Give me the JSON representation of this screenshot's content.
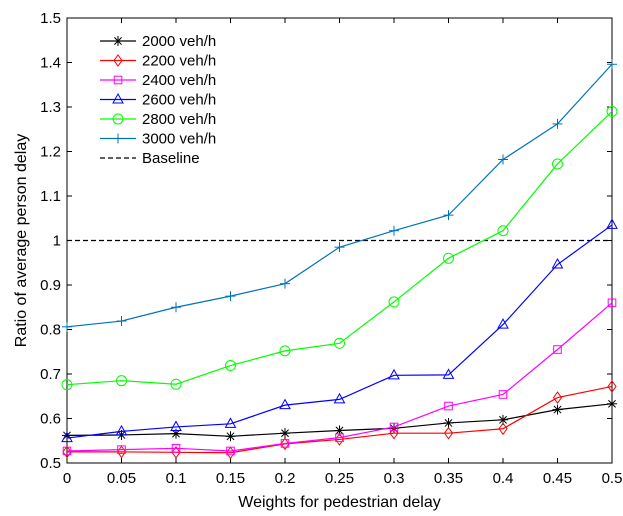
{
  "chart_data": {
    "type": "line",
    "title": "",
    "xlabel": "Weights for pedestrian delay",
    "ylabel": "Ratio of average person delay",
    "xlim": [
      0,
      0.5
    ],
    "ylim": [
      0.5,
      1.5
    ],
    "x_ticks": [
      "0",
      "0.05",
      "0.1",
      "0.15",
      "0.2",
      "0.25",
      "0.3",
      "0.35",
      "0.4",
      "0.45",
      "0.5"
    ],
    "y_ticks": [
      "0.5",
      "0.6",
      "0.7",
      "0.8",
      "0.9",
      "1",
      "1.1",
      "1.2",
      "1.3",
      "1.4",
      "1.5"
    ],
    "grid": false,
    "legend_position": "top-left",
    "x": [
      0,
      0.05,
      0.1,
      0.15,
      0.2,
      0.25,
      0.3,
      0.35,
      0.4,
      0.45,
      0.5
    ],
    "series": [
      {
        "name": "2000 veh/h",
        "color": "#000000",
        "marker": "asterisk",
        "values": [
          0.562,
          0.563,
          0.566,
          0.56,
          0.567,
          0.573,
          0.578,
          0.59,
          0.597,
          0.62,
          0.633
        ]
      },
      {
        "name": "2200 veh/h",
        "color": "#ff0000",
        "marker": "diamond",
        "values": [
          0.525,
          0.525,
          0.524,
          0.523,
          0.543,
          0.553,
          0.567,
          0.567,
          0.577,
          0.647,
          0.672
        ]
      },
      {
        "name": "2400 veh/h",
        "color": "#ff00ff",
        "marker": "square",
        "values": [
          0.527,
          0.53,
          0.533,
          0.527,
          0.544,
          0.557,
          0.581,
          0.628,
          0.654,
          0.755,
          0.86
        ]
      },
      {
        "name": "2600 veh/h",
        "color": "#0000ff",
        "marker": "triangle",
        "values": [
          0.556,
          0.571,
          0.581,
          0.588,
          0.63,
          0.643,
          0.697,
          0.698,
          0.811,
          0.946,
          1.035
        ]
      },
      {
        "name": "2800 veh/h",
        "color": "#00ff00",
        "marker": "circle",
        "values": [
          0.676,
          0.685,
          0.677,
          0.719,
          0.752,
          0.769,
          0.862,
          0.96,
          1.022,
          1.172,
          1.29
        ]
      },
      {
        "name": "3000 veh/h",
        "color": "#0072bd",
        "marker": "plus",
        "values": [
          0.806,
          0.819,
          0.85,
          0.875,
          0.903,
          0.985,
          1.022,
          1.057,
          1.182,
          1.262,
          1.396
        ]
      }
    ],
    "baseline": {
      "name": "Baseline",
      "value": 1.0,
      "color": "#000000",
      "style": "dashed"
    }
  }
}
